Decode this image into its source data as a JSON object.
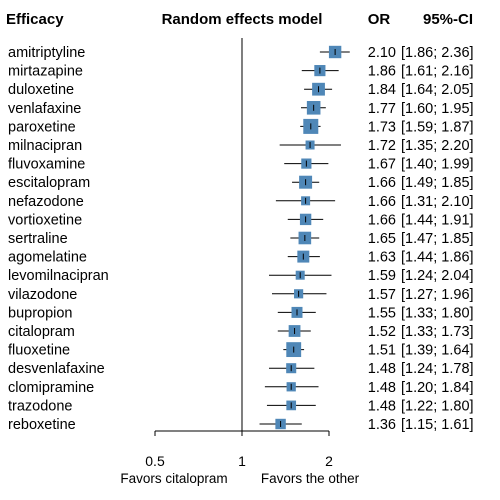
{
  "chart_data": {
    "type": "forest",
    "headers": {
      "section": "Efficacy",
      "model": "Random effects model",
      "estimate": "OR",
      "ci": "95%-CI"
    },
    "x_scale": "log",
    "xlim": [
      0.5,
      2.5
    ],
    "x_ticks": [
      {
        "value": 0.5,
        "label": "0.5"
      },
      {
        "value": 1,
        "label": "1"
      },
      {
        "value": 2,
        "label": "2"
      }
    ],
    "reference_line": 1,
    "favors_left": "Favors citalopram",
    "favors_right": "Favors the other",
    "marker_color": "#4f87b7",
    "studies": [
      {
        "name": "amitriptyline",
        "or": 2.1,
        "lo": 1.86,
        "hi": 2.36,
        "or_text": "2.10",
        "ci_text": "[1.86; 2.36]"
      },
      {
        "name": "mirtazapine",
        "or": 1.86,
        "lo": 1.61,
        "hi": 2.16,
        "or_text": "1.86",
        "ci_text": "[1.61; 2.16]"
      },
      {
        "name": "duloxetine",
        "or": 1.84,
        "lo": 1.64,
        "hi": 2.05,
        "or_text": "1.84",
        "ci_text": "[1.64; 2.05]"
      },
      {
        "name": "venlafaxine",
        "or": 1.77,
        "lo": 1.6,
        "hi": 1.95,
        "or_text": "1.77",
        "ci_text": "[1.60; 1.95]"
      },
      {
        "name": "paroxetine",
        "or": 1.73,
        "lo": 1.59,
        "hi": 1.87,
        "or_text": "1.73",
        "ci_text": "[1.59; 1.87]"
      },
      {
        "name": "milnacipran",
        "or": 1.72,
        "lo": 1.35,
        "hi": 2.2,
        "or_text": "1.72",
        "ci_text": "[1.35; 2.20]"
      },
      {
        "name": "fluvoxamine",
        "or": 1.67,
        "lo": 1.4,
        "hi": 1.99,
        "or_text": "1.67",
        "ci_text": "[1.40; 1.99]"
      },
      {
        "name": "escitalopram",
        "or": 1.66,
        "lo": 1.49,
        "hi": 1.85,
        "or_text": "1.66",
        "ci_text": "[1.49; 1.85]"
      },
      {
        "name": "nefazodone",
        "or": 1.66,
        "lo": 1.31,
        "hi": 2.1,
        "or_text": "1.66",
        "ci_text": "[1.31; 2.10]"
      },
      {
        "name": "vortioxetine",
        "or": 1.66,
        "lo": 1.44,
        "hi": 1.91,
        "or_text": "1.66",
        "ci_text": "[1.44; 1.91]"
      },
      {
        "name": "sertraline",
        "or": 1.65,
        "lo": 1.47,
        "hi": 1.85,
        "or_text": "1.65",
        "ci_text": "[1.47; 1.85]"
      },
      {
        "name": "agomelatine",
        "or": 1.63,
        "lo": 1.44,
        "hi": 1.86,
        "or_text": "1.63",
        "ci_text": "[1.44; 1.86]"
      },
      {
        "name": "levomilnacipran",
        "or": 1.59,
        "lo": 1.24,
        "hi": 2.04,
        "or_text": "1.59",
        "ci_text": "[1.24; 2.04]"
      },
      {
        "name": "vilazodone",
        "or": 1.57,
        "lo": 1.27,
        "hi": 1.96,
        "or_text": "1.57",
        "ci_text": "[1.27; 1.96]"
      },
      {
        "name": "bupropion",
        "or": 1.55,
        "lo": 1.33,
        "hi": 1.8,
        "or_text": "1.55",
        "ci_text": "[1.33; 1.80]"
      },
      {
        "name": "citalopram",
        "or": 1.52,
        "lo": 1.33,
        "hi": 1.73,
        "or_text": "1.52",
        "ci_text": "[1.33; 1.73]"
      },
      {
        "name": "fluoxetine",
        "or": 1.51,
        "lo": 1.39,
        "hi": 1.64,
        "or_text": "1.51",
        "ci_text": "[1.39; 1.64]"
      },
      {
        "name": "desvenlafaxine",
        "or": 1.48,
        "lo": 1.24,
        "hi": 1.78,
        "or_text": "1.48",
        "ci_text": "[1.24; 1.78]"
      },
      {
        "name": "clomipramine",
        "or": 1.48,
        "lo": 1.2,
        "hi": 1.84,
        "or_text": "1.48",
        "ci_text": "[1.20; 1.84]"
      },
      {
        "name": "trazodone",
        "or": 1.48,
        "lo": 1.22,
        "hi": 1.8,
        "or_text": "1.48",
        "ci_text": "[1.22; 1.80]"
      },
      {
        "name": "reboxetine",
        "or": 1.36,
        "lo": 1.15,
        "hi": 1.61,
        "or_text": "1.36",
        "ci_text": "[1.15; 1.61]"
      }
    ]
  }
}
